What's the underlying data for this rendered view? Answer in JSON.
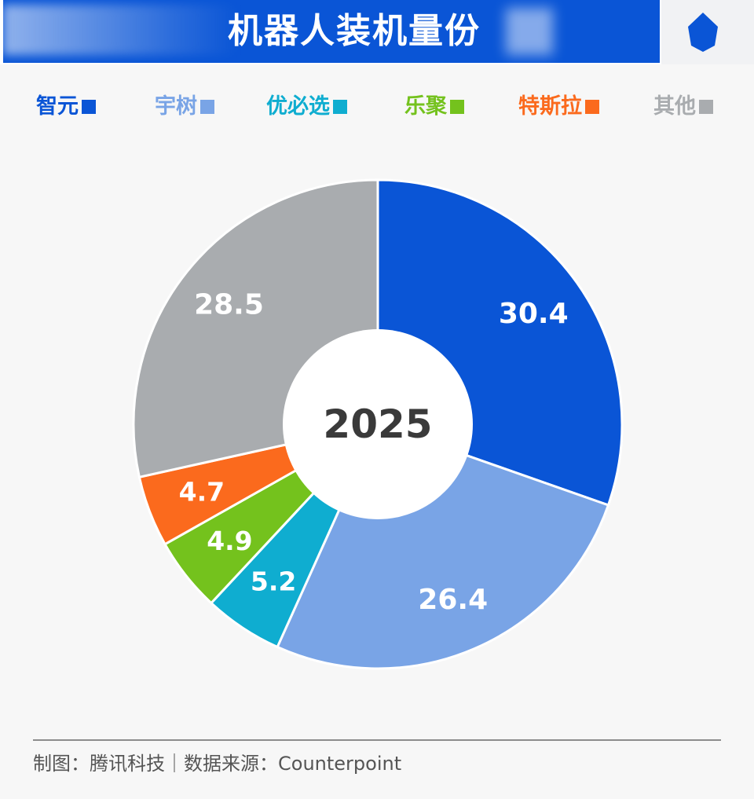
{
  "header": {
    "title": "机器人装机量份",
    "colors": {
      "band": "#0a55d6",
      "icon": "#0a55d6"
    },
    "icon": "blue-badge-icon"
  },
  "legend": [
    {
      "label": "智元",
      "color": "#0a55d6"
    },
    {
      "label": "宇树",
      "color": "#79a4e6"
    },
    {
      "label": "优必选",
      "color": "#0fadd0"
    },
    {
      "label": "乐聚",
      "color": "#74c21d"
    },
    {
      "label": "特斯拉",
      "color": "#fb6a1d"
    },
    {
      "label": "其他",
      "color": "#a9acaf"
    }
  ],
  "chart_data": {
    "type": "pie",
    "style": "donut",
    "center_label": "2025",
    "slices": [
      {
        "name": "智元",
        "value": 30.4,
        "label": "30.4",
        "color": "#0a55d6"
      },
      {
        "name": "宇树",
        "value": 26.4,
        "label": "26.4",
        "color": "#79a4e6"
      },
      {
        "name": "优必选",
        "value": 5.2,
        "label": "5.2",
        "color": "#0fadd0"
      },
      {
        "name": "乐聚",
        "value": 4.9,
        "label": "4.9",
        "color": "#74c21d"
      },
      {
        "name": "特斯拉",
        "value": 4.7,
        "label": "4.7",
        "color": "#fb6a1d"
      },
      {
        "name": "其他",
        "value": 28.5,
        "label": "28.5",
        "color": "#a9acaf"
      }
    ],
    "legend_position": "top"
  },
  "footer": {
    "credit": "制图：腾讯科技｜数据来源：Counterpoint"
  }
}
